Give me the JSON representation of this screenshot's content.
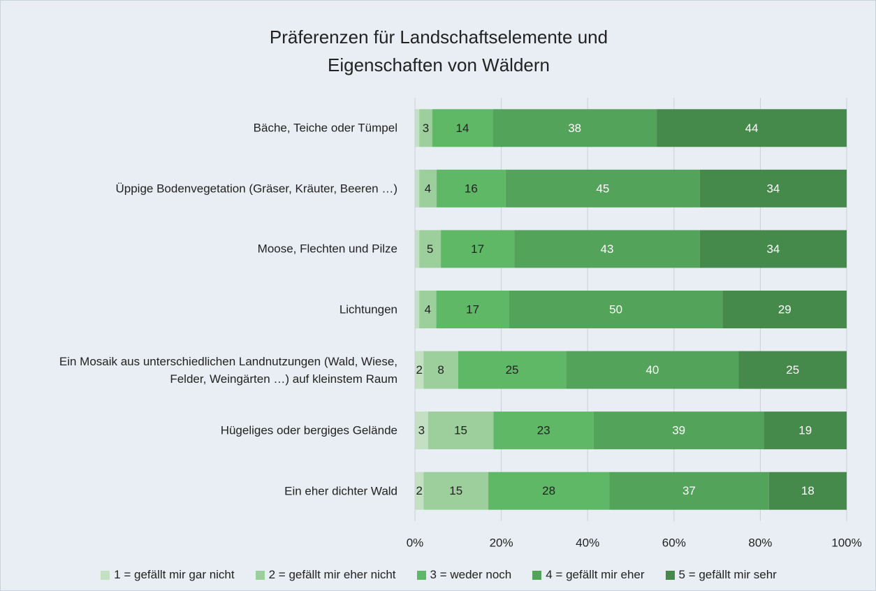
{
  "chart_data": {
    "type": "stacked_bar_100",
    "title": "Präferenzen für Landschaftselemente und Eigenschaften von Wäldern",
    "categories": [
      "Bäche, Teiche oder Tümpel",
      "Üppige Bodenvegetation (Gräser, Kräuter, Beeren …)",
      "Moose, Flechten und Pilze",
      "Lichtungen",
      "Ein Mosaik aus unterschiedlichen Landnutzungen (Wald, Wiese, Felder, Weingärten …) auf kleinstem Raum",
      "Hügeliges oder bergiges Gelände",
      "Ein eher dichter Wald"
    ],
    "series": [
      {
        "name": "1 = gefällt mir gar nicht",
        "color": "#c3e0c3",
        "values": [
          1,
          1,
          1,
          1,
          2,
          3,
          2
        ]
      },
      {
        "name": "2 = gefällt mir eher nicht",
        "color": "#9dcf9d",
        "values": [
          3,
          4,
          5,
          4,
          8,
          15,
          15
        ]
      },
      {
        "name": "3 = weder noch",
        "color": "#5fb865",
        "values": [
          14,
          16,
          17,
          17,
          25,
          23,
          28
        ]
      },
      {
        "name": "4 = gefällt mir eher",
        "color": "#54a35a",
        "values": [
          38,
          45,
          43,
          50,
          40,
          39,
          37
        ]
      },
      {
        "name": "5 = gefällt mir sehr",
        "color": "#458a4b",
        "values": [
          44,
          34,
          34,
          29,
          25,
          19,
          18
        ]
      }
    ],
    "xlim": [
      0,
      100
    ],
    "xticks": [
      {
        "value": 0,
        "label": "0%"
      },
      {
        "value": 20,
        "label": "20%"
      },
      {
        "value": 40,
        "label": "40%"
      },
      {
        "value": 60,
        "label": "60%"
      },
      {
        "value": 80,
        "label": "80%"
      },
      {
        "value": 100,
        "label": "100%"
      }
    ],
    "grid": true,
    "legend": "bottom"
  }
}
